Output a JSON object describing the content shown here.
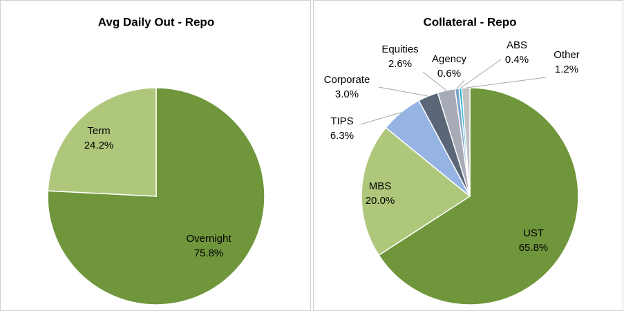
{
  "chart_data": [
    {
      "type": "pie",
      "title": "Avg Daily Out - Repo",
      "categories": [
        "Overnight",
        "Term"
      ],
      "values": [
        75.8,
        24.2
      ],
      "value_labels": [
        "75.8%",
        "24.2%"
      ],
      "colors": [
        "#6f963b",
        "#afc77b"
      ]
    },
    {
      "type": "pie",
      "title": "Collateral - Repo",
      "categories": [
        "UST",
        "MBS",
        "TIPS",
        "Corporate",
        "Equities",
        "Agency",
        "ABS",
        "Other"
      ],
      "values": [
        65.8,
        20.0,
        6.3,
        3.0,
        2.6,
        0.6,
        0.4,
        1.2
      ],
      "value_labels": [
        "65.8%",
        "20.0%",
        "6.3%",
        "3.0%",
        "2.6%",
        "0.6%",
        "0.4%",
        "1.2%"
      ],
      "colors": [
        "#6f963b",
        "#afc77b",
        "#95b3e3",
        "#5b6778",
        "#a7abb6",
        "#7fa3c8",
        "#2bb3d6",
        "#c3c3c3"
      ]
    }
  ]
}
